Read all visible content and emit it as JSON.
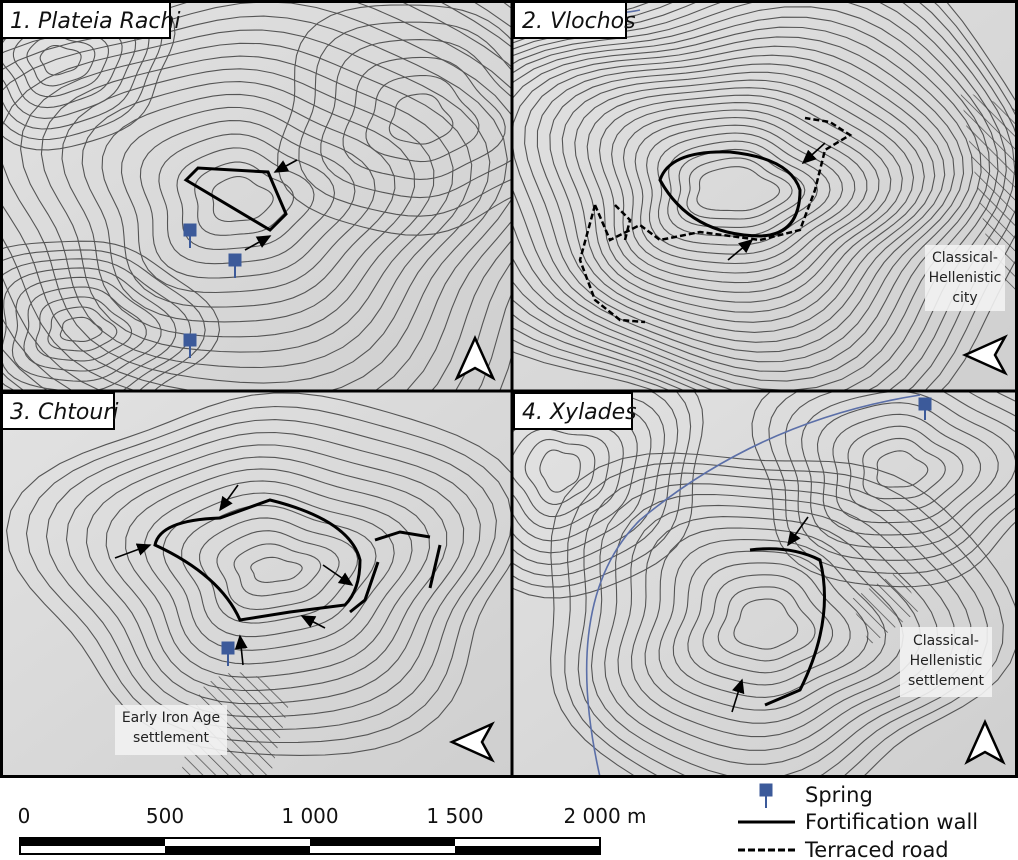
{
  "panels": [
    {
      "title": "1. Plateia Rachi"
    },
    {
      "title": "2. Vlochos",
      "annotation": [
        "Classical-",
        "Hellenistic",
        "city"
      ]
    },
    {
      "title": "3. Chtouri",
      "annotation": [
        "Early Iron Age",
        "settlement"
      ]
    },
    {
      "title": "4. Xylades",
      "annotation": [
        "Classical-",
        "Hellenistic",
        "settlement"
      ]
    }
  ],
  "scale_bar": {
    "labels": [
      "0",
      "500",
      "1 000",
      "1 500",
      "2 000 m"
    ]
  },
  "legend": {
    "items": [
      "Spring",
      "Fortification wall",
      "Terraced road"
    ]
  }
}
